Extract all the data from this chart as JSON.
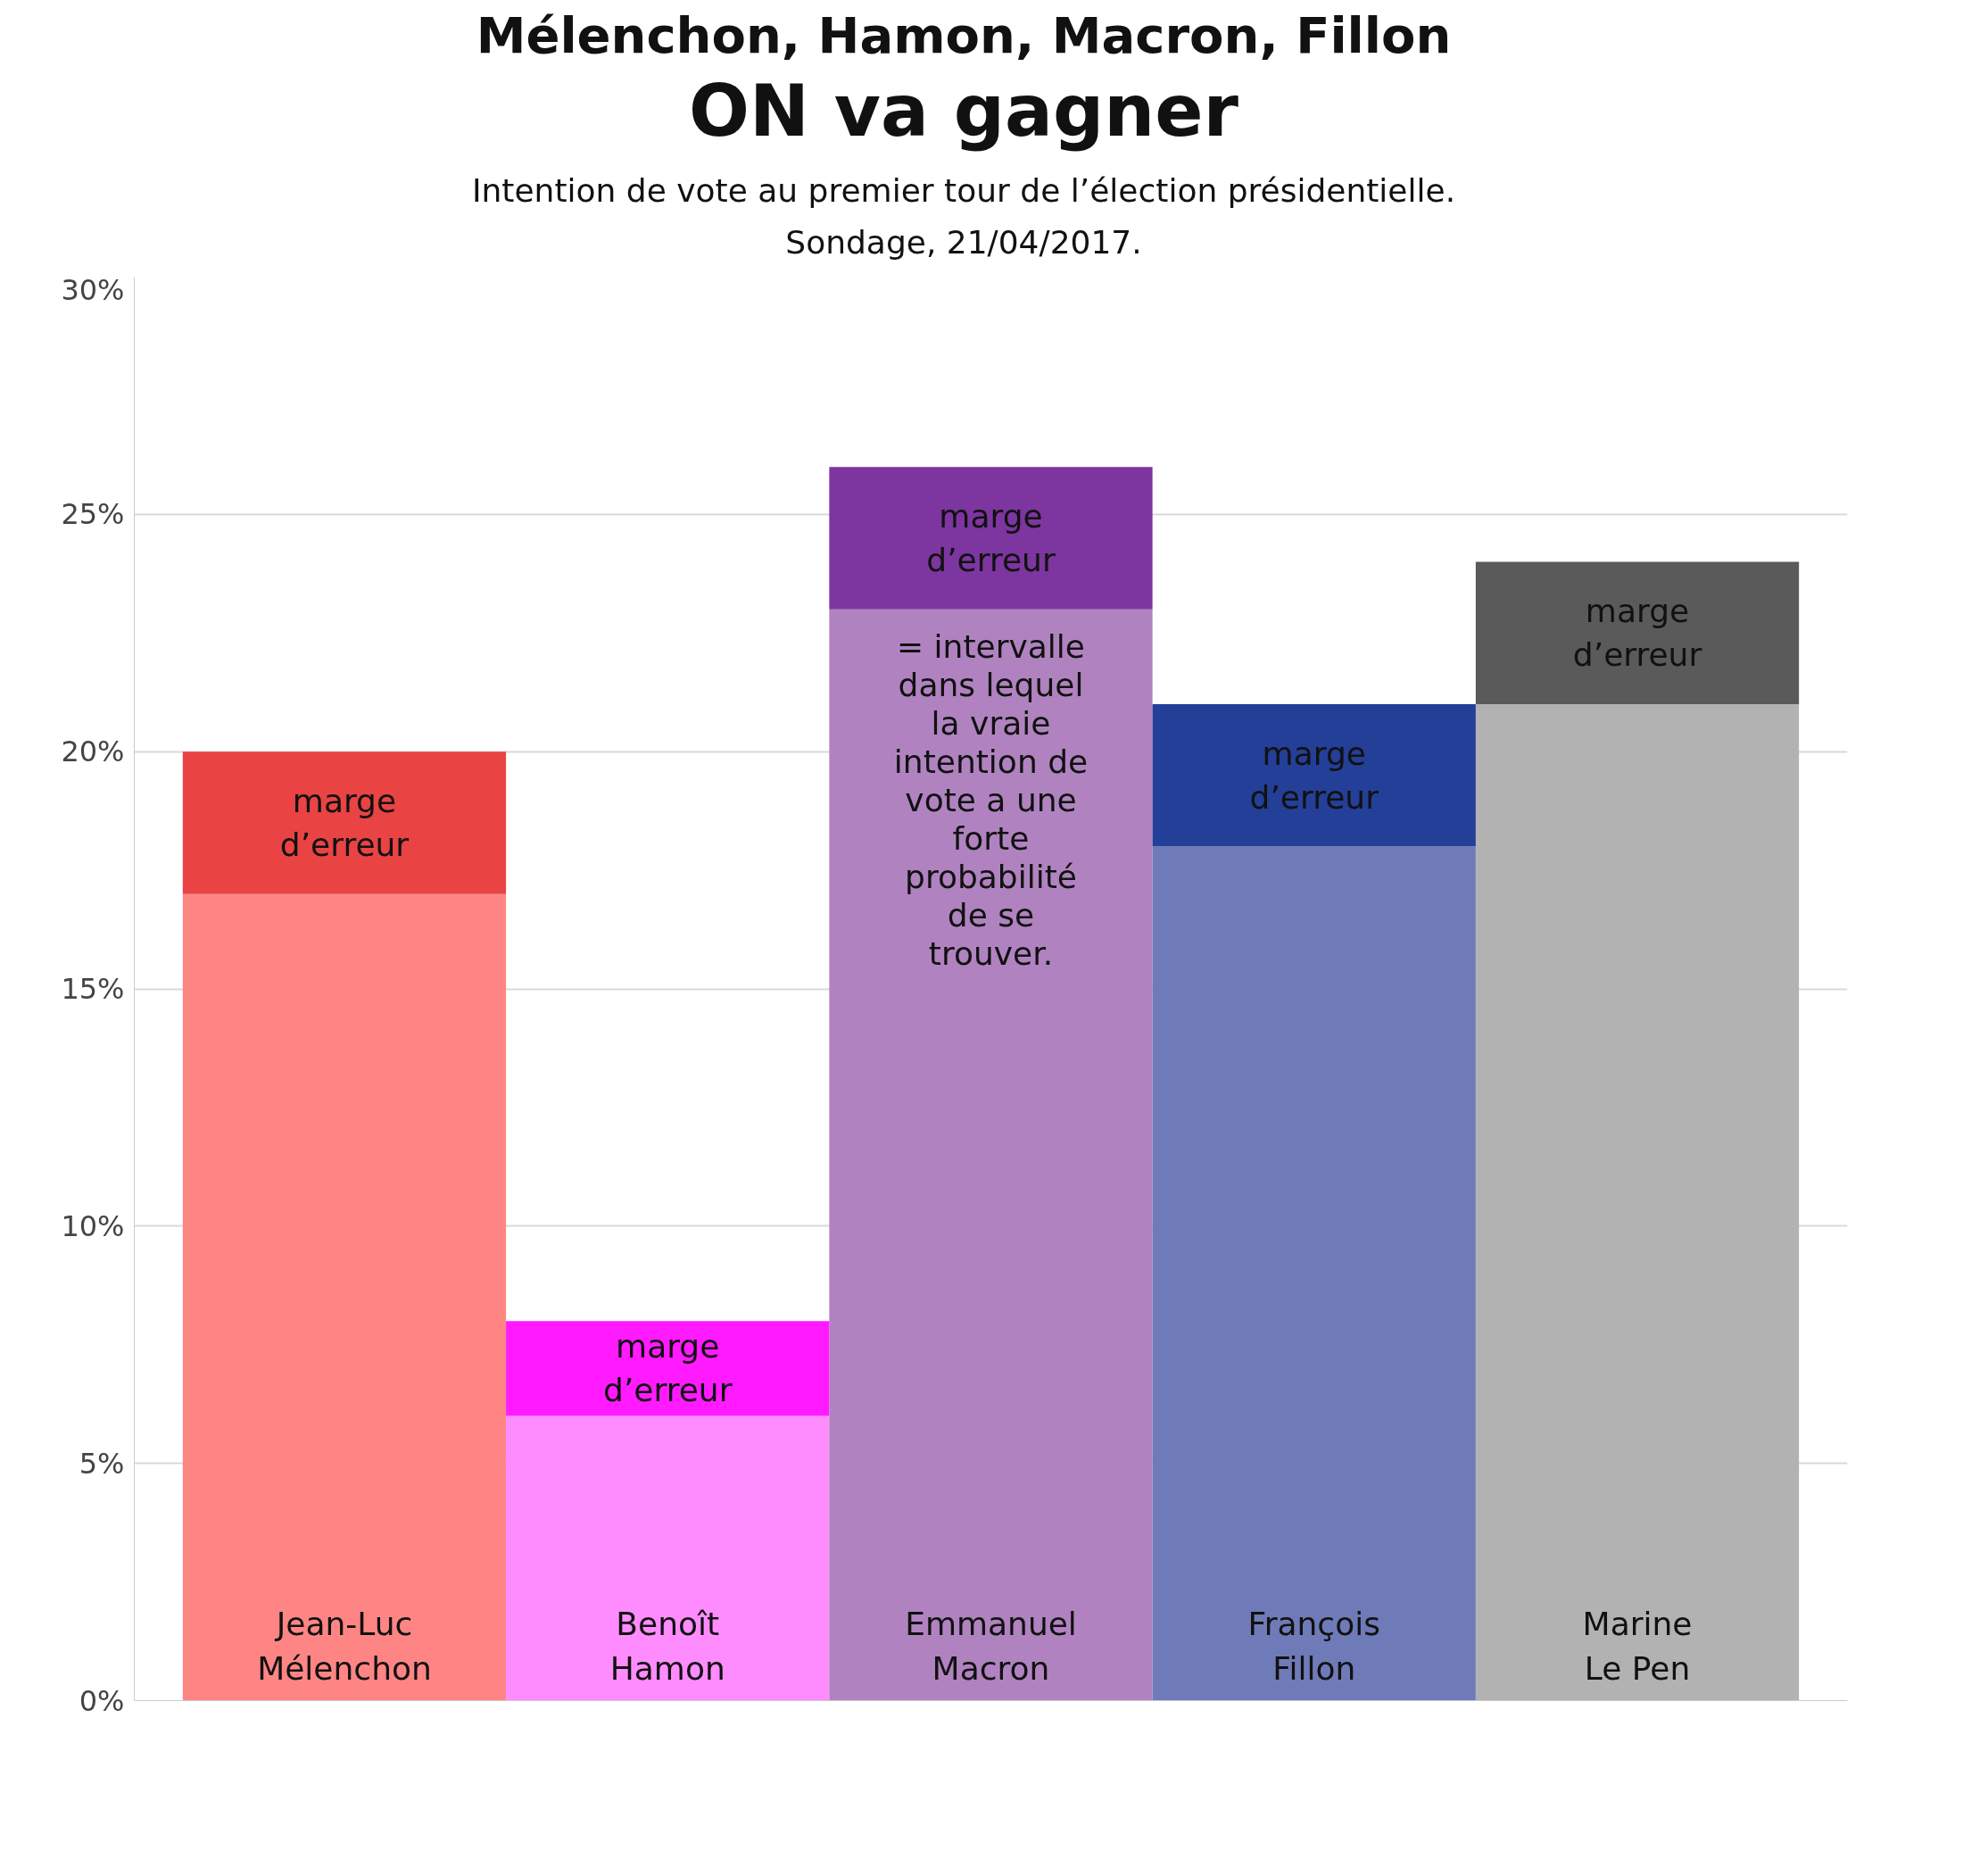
{
  "chart_data": {
    "type": "bar",
    "stacked": true,
    "title": "Mélenchon, Hamon, Macron, Fillon\nON va gagner",
    "subtitle": "Intention de vote au premier tour de l’élection présidentielle.\nSondage, 21/04/2017.",
    "categories": [
      "Jean-Luc Mélenchon",
      "Benoît Hamon",
      "Emmanuel Macron",
      "François Fillon",
      "Marine Le Pen"
    ],
    "series": [
      {
        "colors": [
          "#ff8585",
          "#ff8cff",
          "#b083c0",
          "#6f7bb8",
          "#b2b2b2"
        ],
        "values": [
          17,
          6,
          23,
          18,
          21
        ]
      },
      {
        "name": "marge d’erreur",
        "colors": [
          "#e94343",
          "#ff1aff",
          "#7d35a0",
          "#233f98",
          "#5a5a5a"
        ],
        "values": [
          3,
          2,
          3,
          3,
          3
        ]
      }
    ],
    "ylim": [
      0,
      30
    ],
    "yticks": [
      {
        "value": 0,
        "label": "0%"
      },
      {
        "value": 5,
        "label": "5%"
      },
      {
        "value": 10,
        "label": "10%"
      },
      {
        "value": 15,
        "label": "15%"
      },
      {
        "value": 20,
        "label": "20%"
      },
      {
        "value": 25,
        "label": "25%"
      },
      {
        "value": 30,
        "label": "30%"
      }
    ],
    "grid": "y",
    "tick_labels": "y",
    "annotations": [
      "= intervalle dans lequel la vraie intention de vote a une forte probabilité de se trouver."
    ]
  }
}
